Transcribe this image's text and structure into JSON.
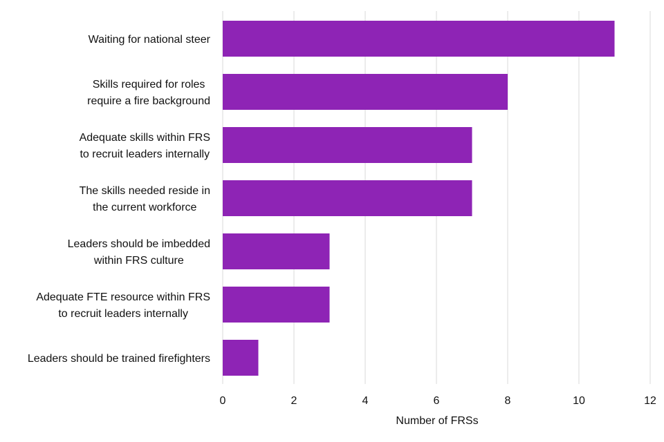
{
  "chart_data": {
    "type": "bar",
    "orientation": "horizontal",
    "categories": [
      [
        "Waiting for national steer"
      ],
      [
        "Skills required for roles",
        "require a fire background"
      ],
      [
        "Adequate skills within FRS",
        "to recruit leaders internally"
      ],
      [
        "The skills needed reside in",
        "the current workforce"
      ],
      [
        "Leaders should be imbedded",
        "within FRS culture"
      ],
      [
        "Adequate FTE resource within FRS",
        "to recruit leaders internally"
      ],
      [
        "Leaders should be trained firefighters"
      ]
    ],
    "values": [
      11,
      8,
      7,
      7,
      3,
      3,
      1
    ],
    "xlabel": "Number of FRSs",
    "ylabel": "",
    "xlim": [
      0,
      12
    ],
    "xticks": [
      0,
      2,
      4,
      6,
      8,
      10,
      12
    ],
    "grid": "vertical",
    "legend": "none",
    "colors": {
      "bar": "#8E24B5",
      "grid": "#d9d9d9",
      "text": "#111111"
    }
  }
}
